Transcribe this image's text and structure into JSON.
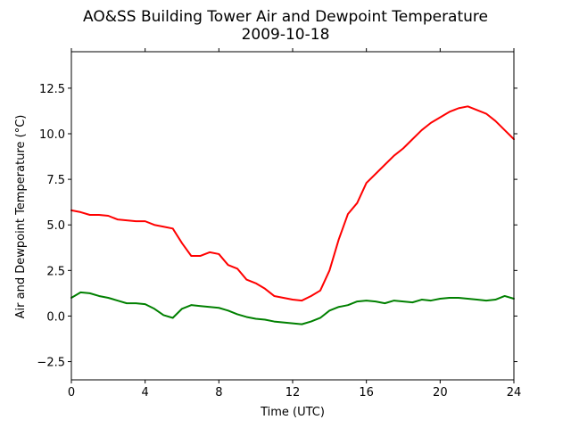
{
  "chart_data": {
    "type": "line",
    "title": "AO&SS Building Tower Air and Dewpoint Temperature",
    "subtitle": "2009-10-18",
    "xlabel": "Time (UTC)",
    "ylabel": "Air and Dewpoint Temperature (°C)",
    "xlim": [
      0,
      24
    ],
    "ylim": [
      -3.5,
      14.5
    ],
    "xticks": [
      0,
      4,
      8,
      12,
      16,
      20,
      24
    ],
    "xtick_labels": [
      "0",
      "4",
      "8",
      "12",
      "16",
      "20",
      "24"
    ],
    "yticks": [
      -2.5,
      0.0,
      2.5,
      5.0,
      7.5,
      10.0,
      12.5
    ],
    "ytick_labels": [
      "−2.5",
      "0.0",
      "2.5",
      "5.0",
      "7.5",
      "10.0",
      "12.5"
    ],
    "grid": false,
    "legend": "none",
    "series": [
      {
        "color": "#ff0000",
        "x": [
          0,
          0.5,
          1,
          1.5,
          2,
          2.5,
          3,
          3.5,
          4,
          4.5,
          5,
          5.5,
          6,
          6.5,
          7,
          7.5,
          8,
          8.5,
          9,
          9.5,
          10,
          10.5,
          11,
          11.5,
          12,
          12.5,
          13,
          13.5,
          14,
          14.5,
          15,
          15.5,
          16,
          16.5,
          17,
          17.5,
          18,
          18.5,
          19,
          19.5,
          20,
          20.5,
          21,
          21.5,
          22,
          22.5,
          23,
          23.5,
          24
        ],
        "values": [
          5.8,
          5.7,
          5.55,
          5.55,
          5.5,
          5.3,
          5.25,
          5.2,
          5.2,
          5.0,
          4.9,
          4.8,
          4.0,
          3.3,
          3.3,
          3.5,
          3.4,
          2.8,
          2.6,
          2.0,
          1.8,
          1.5,
          1.1,
          1.0,
          0.9,
          0.85,
          1.1,
          1.4,
          2.5,
          4.2,
          5.6,
          6.2,
          7.3,
          7.8,
          8.3,
          8.8,
          9.2,
          9.7,
          10.2,
          10.6,
          10.9,
          11.2,
          11.4,
          11.5,
          11.3,
          11.1,
          10.7,
          10.2,
          9.7
        ]
      },
      {
        "color": "#008000",
        "x": [
          0,
          0.5,
          1,
          1.5,
          2,
          2.5,
          3,
          3.5,
          4,
          4.5,
          5,
          5.5,
          6,
          6.5,
          7,
          7.5,
          8,
          8.5,
          9,
          9.5,
          10,
          10.5,
          11,
          11.5,
          12,
          12.5,
          13,
          13.5,
          14,
          14.5,
          15,
          15.5,
          16,
          16.5,
          17,
          17.5,
          18,
          18.5,
          19,
          19.5,
          20,
          20.5,
          21,
          21.5,
          22,
          22.5,
          23,
          23.5,
          24
        ],
        "values": [
          1.0,
          1.3,
          1.25,
          1.1,
          1.0,
          0.85,
          0.7,
          0.7,
          0.65,
          0.4,
          0.05,
          -0.1,
          0.4,
          0.6,
          0.55,
          0.5,
          0.45,
          0.3,
          0.1,
          -0.05,
          -0.15,
          -0.2,
          -0.3,
          -0.35,
          -0.4,
          -0.45,
          -0.3,
          -0.1,
          0.3,
          0.5,
          0.6,
          0.8,
          0.85,
          0.8,
          0.7,
          0.85,
          0.8,
          0.75,
          0.9,
          0.85,
          0.95,
          1.0,
          1.0,
          0.95,
          0.9,
          0.85,
          0.9,
          1.1,
          0.95
        ]
      }
    ]
  }
}
